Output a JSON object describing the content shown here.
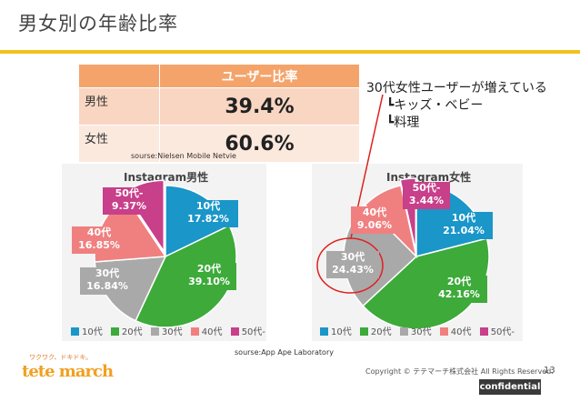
{
  "page": {
    "title": "男女別の年齢比率",
    "page_number": "13",
    "copyright": "Copyright © テテマーチ株式会社 All Rights Reserved.",
    "confidential": "confidential"
  },
  "ratio_table": {
    "header": "ユーザー比率",
    "rows": [
      {
        "label": "男性",
        "value": "39.4%"
      },
      {
        "label": "女性",
        "value": "60.6%"
      }
    ],
    "source": "sourse:Nielsen Mobile Netvie"
  },
  "callout": {
    "main": "30代女性ユーザーが増えている",
    "sub1": "┗キッズ・ベビー",
    "sub2": "┗料理"
  },
  "charts_source": "sourse:App Ape Laboratory",
  "logo": {
    "tagline": "ワクワク、ドキドキ。",
    "name": "tete march"
  },
  "colors": {
    "c10": "#1a96c9",
    "c20": "#3daa3a",
    "c30": "#a9a9a9",
    "c40": "#f08080",
    "c50": "#c83f8a"
  },
  "chart_data": [
    {
      "type": "pie",
      "title": "Instagram男性",
      "categories": [
        "10代",
        "20代",
        "30代",
        "40代",
        "50代-"
      ],
      "values": [
        17.82,
        39.1,
        16.84,
        16.85,
        9.37
      ],
      "labels": [
        "10代\n17.82%",
        "20代\n39.10%",
        "30代\n16.84%",
        "40代\n16.85%",
        "50代\n9.37%"
      ],
      "legend": [
        "10代",
        "20代",
        "30代",
        "40代",
        "50代-"
      ]
    },
    {
      "type": "pie",
      "title": "Instagram女性",
      "categories": [
        "10代",
        "20代",
        "30代",
        "40代",
        "50代-"
      ],
      "values": [
        21.04,
        42.16,
        24.43,
        9.06,
        3.44
      ],
      "labels": [
        "10代\n21.04%",
        "20代\n42.16%",
        "30代\n24.43%",
        "40代\n9.06%",
        "50代\n3.44%"
      ],
      "legend": [
        "10代",
        "20代",
        "30代",
        "40代",
        "50代-"
      ]
    }
  ]
}
